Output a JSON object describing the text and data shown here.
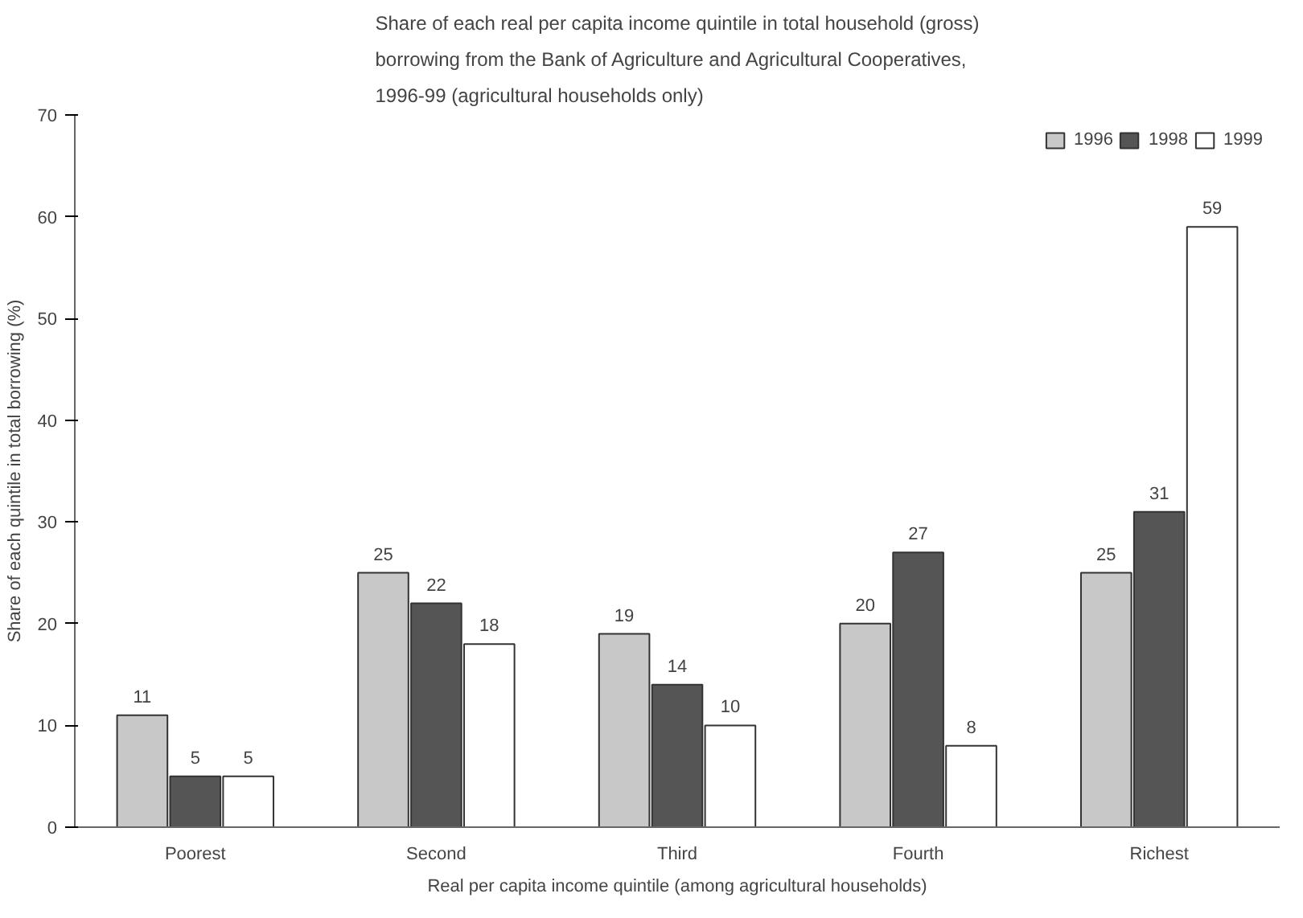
{
  "chart_data": {
    "type": "bar",
    "title": "Share of each real per capita income quintile in total household (gross)\nborrowing from the Bank of Agriculture and Agricultural Cooperatives,\n1996-99 (agricultural households only)",
    "xlabel": "Real per capita income quintile (among agricultural households)",
    "ylabel": "Share of each quintile in total borrowing (%)",
    "categories": [
      "Poorest",
      "Second",
      "Third",
      "Fourth",
      "Richest"
    ],
    "series": [
      {
        "name": "1996",
        "color": "#c8c8c8",
        "values": [
          11,
          25,
          19,
          20,
          25
        ]
      },
      {
        "name": "1998",
        "color": "#555555",
        "values": [
          5,
          22,
          14,
          27,
          31
        ]
      },
      {
        "name": "1999",
        "color": "#ffffff",
        "values": [
          5,
          18,
          10,
          8,
          59
        ]
      }
    ],
    "ylim": [
      0,
      70
    ],
    "yticks": [
      0,
      10,
      20,
      30,
      40,
      50,
      60,
      70
    ],
    "grid": false,
    "legend": "top right",
    "data_labels": true
  }
}
